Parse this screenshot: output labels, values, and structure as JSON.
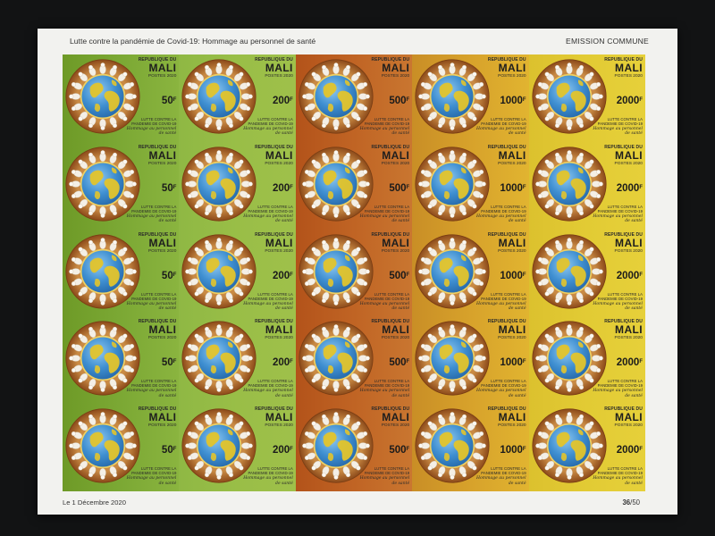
{
  "sheet": {
    "header_left": "Lutte contre la pandémie de Covid-19: Hommage au personnel de santé",
    "header_right": "EMISSION COMMUNE",
    "footer_left": "Le 1 Décembre 2020",
    "footer_number": "36",
    "footer_total": "/50"
  },
  "stamp": {
    "country_line1": "REPUBLIQUE DU",
    "country_line2": "MALI",
    "postes": "POSTES 2020",
    "lutte": "LUTTE CONTRE LA PANDEMIE DE COVID-19",
    "hommage": "Hommage au personnel de santé",
    "currency_suffix": "F"
  },
  "columns": [
    {
      "value": "50",
      "color": "#7aa733"
    },
    {
      "value": "200",
      "color": "#99be47"
    },
    {
      "value": "500",
      "color": "#c06424"
    },
    {
      "value": "1000",
      "color": "#d7a22b"
    },
    {
      "value": "2000",
      "color": "#e2cb34"
    }
  ],
  "rows": 5,
  "colors": {
    "sheet": "#f2f2ef",
    "background": "#121314",
    "ring": "#b26a28",
    "globe_sea": "#3f8fd1",
    "globe_land": "#e3c42b"
  },
  "icons": {
    "emblem": "globe-with-ring-of-health-workers-icon"
  }
}
